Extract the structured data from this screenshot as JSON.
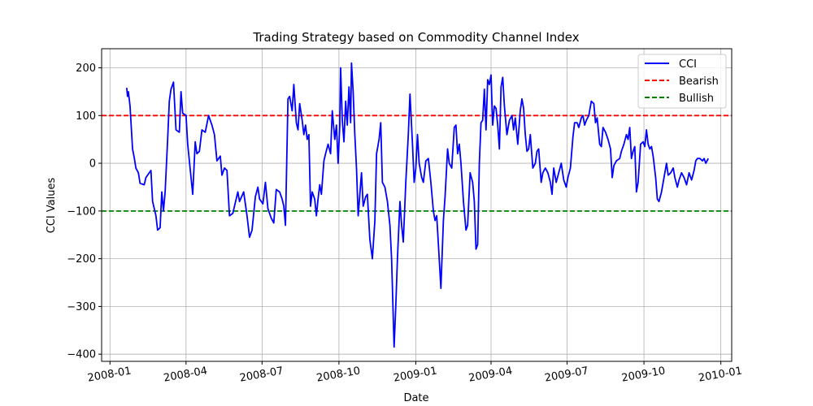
{
  "chart_data": {
    "type": "line",
    "title": "Trading Strategy based on Commodity Channel Index",
    "xlabel": "Date",
    "ylabel": "CCI Values",
    "xlim": [
      "2007-12-22",
      "2010-01-14"
    ],
    "ylim": [
      -415,
      240
    ],
    "x_ticks": [
      "2008-01",
      "2008-04",
      "2008-07",
      "2008-10",
      "2009-01",
      "2009-04",
      "2009-07",
      "2009-10",
      "2010-01"
    ],
    "y_ticks": [
      200,
      100,
      0,
      -100,
      -200,
      -300,
      -400
    ],
    "y_tick_labels": [
      "200",
      "100",
      "0",
      "−100",
      "−200",
      "−300",
      "−400"
    ],
    "grid": true,
    "legend_position": "top-right",
    "series": [
      {
        "name": "CCI",
        "color": "#0000ff",
        "style": "solid",
        "points": [
          [
            "2008-01-21",
            158
          ],
          [
            "2008-01-22",
            140
          ],
          [
            "2008-01-23",
            150
          ],
          [
            "2008-01-25",
            120
          ],
          [
            "2008-01-28",
            30
          ],
          [
            "2008-01-30",
            12
          ],
          [
            "2008-02-01",
            -10
          ],
          [
            "2008-02-04",
            -20
          ],
          [
            "2008-02-06",
            -42
          ],
          [
            "2008-02-11",
            -45
          ],
          [
            "2008-02-13",
            -30
          ],
          [
            "2008-02-15",
            -25
          ],
          [
            "2008-02-19",
            -15
          ],
          [
            "2008-02-21",
            -80
          ],
          [
            "2008-02-25",
            -110
          ],
          [
            "2008-02-27",
            -140
          ],
          [
            "2008-03-01",
            -135
          ],
          [
            "2008-03-03",
            -60
          ],
          [
            "2008-03-05",
            -100
          ],
          [
            "2008-03-07",
            -60
          ],
          [
            "2008-03-10",
            50
          ],
          [
            "2008-03-12",
            130
          ],
          [
            "2008-03-14",
            155
          ],
          [
            "2008-03-17",
            170
          ],
          [
            "2008-03-20",
            70
          ],
          [
            "2008-03-24",
            65
          ],
          [
            "2008-03-26",
            150
          ],
          [
            "2008-03-28",
            105
          ],
          [
            "2008-04-01",
            100
          ],
          [
            "2008-04-03",
            40
          ],
          [
            "2008-04-07",
            -30
          ],
          [
            "2008-04-09",
            -65
          ],
          [
            "2008-04-12",
            45
          ],
          [
            "2008-04-14",
            20
          ],
          [
            "2008-04-17",
            25
          ],
          [
            "2008-04-20",
            70
          ],
          [
            "2008-04-24",
            65
          ],
          [
            "2008-04-28",
            100
          ],
          [
            "2008-05-02",
            80
          ],
          [
            "2008-05-05",
            60
          ],
          [
            "2008-05-08",
            5
          ],
          [
            "2008-05-12",
            15
          ],
          [
            "2008-05-14",
            -25
          ],
          [
            "2008-05-17",
            -10
          ],
          [
            "2008-05-20",
            -15
          ],
          [
            "2008-05-23",
            -110
          ],
          [
            "2008-05-27",
            -105
          ],
          [
            "2008-06-02",
            -60
          ],
          [
            "2008-06-04",
            -80
          ],
          [
            "2008-06-09",
            -60
          ],
          [
            "2008-06-13",
            -110
          ],
          [
            "2008-06-16",
            -155
          ],
          [
            "2008-06-19",
            -140
          ],
          [
            "2008-06-23",
            -70
          ],
          [
            "2008-06-26",
            -50
          ],
          [
            "2008-06-28",
            -75
          ],
          [
            "2008-07-02",
            -85
          ],
          [
            "2008-07-05",
            -40
          ],
          [
            "2008-07-08",
            -95
          ],
          [
            "2008-07-12",
            -115
          ],
          [
            "2008-07-15",
            -125
          ],
          [
            "2008-07-18",
            -55
          ],
          [
            "2008-07-22",
            -60
          ],
          [
            "2008-07-25",
            -75
          ],
          [
            "2008-07-27",
            -90
          ],
          [
            "2008-07-29",
            -130
          ],
          [
            "2008-08-01",
            135
          ],
          [
            "2008-08-03",
            140
          ],
          [
            "2008-08-06",
            110
          ],
          [
            "2008-08-08",
            165
          ],
          [
            "2008-08-11",
            85
          ],
          [
            "2008-08-13",
            70
          ],
          [
            "2008-08-15",
            125
          ],
          [
            "2008-08-18",
            90
          ],
          [
            "2008-08-20",
            60
          ],
          [
            "2008-08-22",
            80
          ],
          [
            "2008-08-24",
            50
          ],
          [
            "2008-08-26",
            60
          ],
          [
            "2008-08-28",
            -90
          ],
          [
            "2008-08-30",
            -60
          ],
          [
            "2008-09-02",
            -75
          ],
          [
            "2008-09-04",
            -110
          ],
          [
            "2008-09-06",
            -75
          ],
          [
            "2008-09-08",
            -45
          ],
          [
            "2008-09-10",
            -65
          ],
          [
            "2008-09-13",
            5
          ],
          [
            "2008-09-15",
            20
          ],
          [
            "2008-09-18",
            40
          ],
          [
            "2008-09-21",
            20
          ],
          [
            "2008-09-23",
            110
          ],
          [
            "2008-09-26",
            50
          ],
          [
            "2008-09-28",
            80
          ],
          [
            "2008-09-30",
            0
          ],
          [
            "2008-10-02",
            80
          ],
          [
            "2008-10-03",
            200
          ],
          [
            "2008-10-05",
            90
          ],
          [
            "2008-10-07",
            45
          ],
          [
            "2008-10-09",
            130
          ],
          [
            "2008-10-11",
            80
          ],
          [
            "2008-10-13",
            160
          ],
          [
            "2008-10-15",
            85
          ],
          [
            "2008-10-16",
            210
          ],
          [
            "2008-10-18",
            150
          ],
          [
            "2008-10-20",
            60
          ],
          [
            "2008-10-22",
            -10
          ],
          [
            "2008-10-24",
            -110
          ],
          [
            "2008-10-26",
            -65
          ],
          [
            "2008-10-28",
            -20
          ],
          [
            "2008-10-30",
            -90
          ],
          [
            "2008-11-02",
            -70
          ],
          [
            "2008-11-04",
            -65
          ],
          [
            "2008-11-07",
            -160
          ],
          [
            "2008-11-10",
            -200
          ],
          [
            "2008-11-13",
            -120
          ],
          [
            "2008-11-15",
            20
          ],
          [
            "2008-11-18",
            50
          ],
          [
            "2008-11-20",
            85
          ],
          [
            "2008-11-22",
            -40
          ],
          [
            "2008-11-25",
            -50
          ],
          [
            "2008-11-28",
            -80
          ],
          [
            "2008-12-01",
            -130
          ],
          [
            "2008-12-03",
            -200
          ],
          [
            "2008-12-06",
            -385
          ],
          [
            "2008-12-08",
            -300
          ],
          [
            "2008-12-10",
            -200
          ],
          [
            "2008-12-13",
            -80
          ],
          [
            "2008-12-15",
            -130
          ],
          [
            "2008-12-17",
            -165
          ],
          [
            "2008-12-20",
            -40
          ],
          [
            "2008-12-23",
            60
          ],
          [
            "2008-12-25",
            145
          ],
          [
            "2008-12-28",
            40
          ],
          [
            "2008-12-30",
            -40
          ],
          [
            "2009-01-01",
            -10
          ],
          [
            "2009-01-03",
            60
          ],
          [
            "2009-01-05",
            0
          ],
          [
            "2009-01-08",
            -30
          ],
          [
            "2009-01-10",
            -40
          ],
          [
            "2009-01-13",
            5
          ],
          [
            "2009-01-16",
            10
          ],
          [
            "2009-01-19",
            -40
          ],
          [
            "2009-01-22",
            -100
          ],
          [
            "2009-01-24",
            -120
          ],
          [
            "2009-01-26",
            -110
          ],
          [
            "2009-01-28",
            -170
          ],
          [
            "2009-01-31",
            -262
          ],
          [
            "2009-02-03",
            -120
          ],
          [
            "2009-02-05",
            -70
          ],
          [
            "2009-02-08",
            30
          ],
          [
            "2009-02-10",
            0
          ],
          [
            "2009-02-13",
            -10
          ],
          [
            "2009-02-16",
            75
          ],
          [
            "2009-02-18",
            80
          ],
          [
            "2009-02-20",
            20
          ],
          [
            "2009-02-22",
            40
          ],
          [
            "2009-02-24",
            0
          ],
          [
            "2009-02-27",
            -80
          ],
          [
            "2009-03-02",
            -140
          ],
          [
            "2009-03-04",
            -130
          ],
          [
            "2009-03-07",
            -20
          ],
          [
            "2009-03-10",
            -40
          ],
          [
            "2009-03-12",
            -80
          ],
          [
            "2009-03-14",
            -180
          ],
          [
            "2009-03-16",
            -170
          ],
          [
            "2009-03-18",
            0
          ],
          [
            "2009-03-20",
            85
          ],
          [
            "2009-03-22",
            90
          ],
          [
            "2009-03-24",
            155
          ],
          [
            "2009-03-26",
            70
          ],
          [
            "2009-03-28",
            175
          ],
          [
            "2009-03-30",
            165
          ],
          [
            "2009-04-01",
            185
          ],
          [
            "2009-04-03",
            80
          ],
          [
            "2009-04-05",
            120
          ],
          [
            "2009-04-07",
            115
          ],
          [
            "2009-04-09",
            80
          ],
          [
            "2009-04-11",
            30
          ],
          [
            "2009-04-13",
            160
          ],
          [
            "2009-04-15",
            180
          ],
          [
            "2009-04-17",
            120
          ],
          [
            "2009-04-20",
            60
          ],
          [
            "2009-04-23",
            90
          ],
          [
            "2009-04-26",
            100
          ],
          [
            "2009-04-28",
            70
          ],
          [
            "2009-04-30",
            95
          ],
          [
            "2009-05-03",
            40
          ],
          [
            "2009-05-06",
            110
          ],
          [
            "2009-05-08",
            135
          ],
          [
            "2009-05-10",
            115
          ],
          [
            "2009-05-12",
            60
          ],
          [
            "2009-05-14",
            25
          ],
          [
            "2009-05-16",
            30
          ],
          [
            "2009-05-18",
            60
          ],
          [
            "2009-05-21",
            -10
          ],
          [
            "2009-05-24",
            0
          ],
          [
            "2009-05-26",
            25
          ],
          [
            "2009-05-28",
            30
          ],
          [
            "2009-05-31",
            -40
          ],
          [
            "2009-06-02",
            -20
          ],
          [
            "2009-06-05",
            -10
          ],
          [
            "2009-06-08",
            -20
          ],
          [
            "2009-06-11",
            -40
          ],
          [
            "2009-06-13",
            -65
          ],
          [
            "2009-06-15",
            -10
          ],
          [
            "2009-06-18",
            -40
          ],
          [
            "2009-06-21",
            -20
          ],
          [
            "2009-06-24",
            0
          ],
          [
            "2009-06-27",
            -35
          ],
          [
            "2009-06-30",
            -50
          ],
          [
            "2009-07-02",
            -30
          ],
          [
            "2009-07-05",
            -10
          ],
          [
            "2009-07-08",
            55
          ],
          [
            "2009-07-10",
            85
          ],
          [
            "2009-07-13",
            85
          ],
          [
            "2009-07-15",
            75
          ],
          [
            "2009-07-18",
            95
          ],
          [
            "2009-07-20",
            100
          ],
          [
            "2009-07-22",
            80
          ],
          [
            "2009-07-24",
            90
          ],
          [
            "2009-07-27",
            100
          ],
          [
            "2009-07-30",
            130
          ],
          [
            "2009-08-02",
            125
          ],
          [
            "2009-08-04",
            85
          ],
          [
            "2009-08-06",
            95
          ],
          [
            "2009-08-09",
            40
          ],
          [
            "2009-08-11",
            35
          ],
          [
            "2009-08-13",
            75
          ],
          [
            "2009-08-16",
            65
          ],
          [
            "2009-08-19",
            50
          ],
          [
            "2009-08-22",
            30
          ],
          [
            "2009-08-24",
            -30
          ],
          [
            "2009-08-26",
            -5
          ],
          [
            "2009-08-29",
            5
          ],
          [
            "2009-09-02",
            10
          ],
          [
            "2009-09-04",
            25
          ],
          [
            "2009-09-07",
            40
          ],
          [
            "2009-09-10",
            60
          ],
          [
            "2009-09-12",
            50
          ],
          [
            "2009-09-14",
            75
          ],
          [
            "2009-09-16",
            10
          ],
          [
            "2009-09-18",
            25
          ],
          [
            "2009-09-20",
            35
          ],
          [
            "2009-09-22",
            -60
          ],
          [
            "2009-09-24",
            -40
          ],
          [
            "2009-09-27",
            40
          ],
          [
            "2009-09-30",
            45
          ],
          [
            "2009-10-02",
            35
          ],
          [
            "2009-10-04",
            70
          ],
          [
            "2009-10-06",
            40
          ],
          [
            "2009-10-08",
            30
          ],
          [
            "2009-10-10",
            35
          ],
          [
            "2009-10-12",
            15
          ],
          [
            "2009-10-15",
            -30
          ],
          [
            "2009-10-17",
            -75
          ],
          [
            "2009-10-19",
            -80
          ],
          [
            "2009-10-22",
            -60
          ],
          [
            "2009-10-25",
            -30
          ],
          [
            "2009-10-28",
            0
          ],
          [
            "2009-10-30",
            -25
          ],
          [
            "2009-11-02",
            -20
          ],
          [
            "2009-11-05",
            -10
          ],
          [
            "2009-11-07",
            -30
          ],
          [
            "2009-11-10",
            -50
          ],
          [
            "2009-11-12",
            -35
          ],
          [
            "2009-11-15",
            -20
          ],
          [
            "2009-11-18",
            -30
          ],
          [
            "2009-11-21",
            -45
          ],
          [
            "2009-11-24",
            -20
          ],
          [
            "2009-11-27",
            -35
          ],
          [
            "2009-11-30",
            -15
          ],
          [
            "2009-12-02",
            5
          ],
          [
            "2009-12-04",
            10
          ],
          [
            "2009-12-07",
            10
          ],
          [
            "2009-12-10",
            5
          ],
          [
            "2009-12-12",
            10
          ],
          [
            "2009-12-14",
            0
          ],
          [
            "2009-12-17",
            10
          ]
        ]
      },
      {
        "name": "Bearish",
        "color": "#ff0000",
        "style": "dashed",
        "y": 100
      },
      {
        "name": "Bullish",
        "color": "#008000",
        "style": "dashed",
        "y": -100
      }
    ]
  }
}
